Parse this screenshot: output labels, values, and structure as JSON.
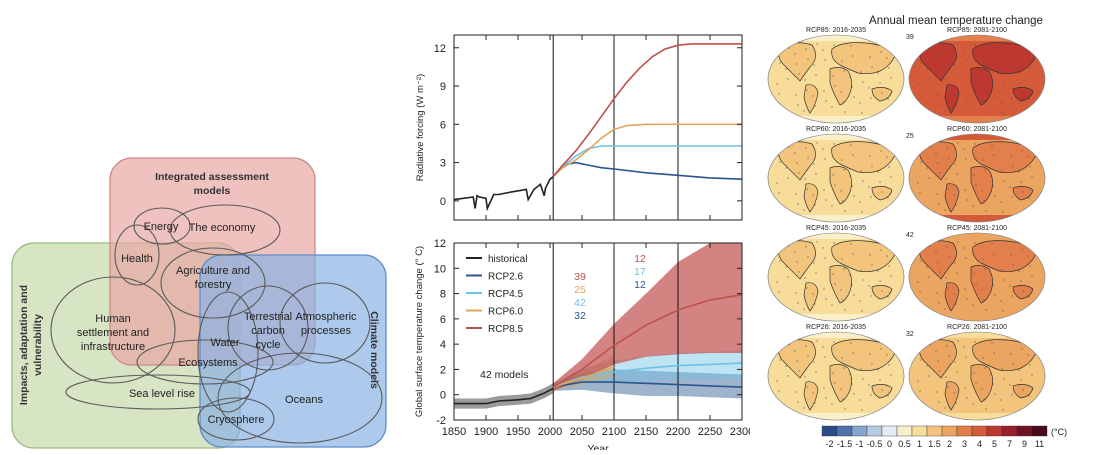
{
  "venn": {
    "groups": [
      {
        "label": "Integrated assessment models",
        "color": "#e8a6a4"
      },
      {
        "label": "Impacts, adaptation and vulnerability",
        "color": "#c9dcb2"
      },
      {
        "label": "Climate models",
        "color": "#8ab2e4"
      }
    ],
    "elements": [
      "Energy",
      "The economy",
      "Health",
      "Agriculture and forestry",
      "Human settlement and infrastructure",
      "Terrestrial carbon cycle",
      "Atmospheric processes",
      "Water",
      "Ecosystems",
      "Sea level rise",
      "Oceans",
      "Cryosphere"
    ]
  },
  "chart_data": [
    {
      "type": "line",
      "xlabel": "",
      "ylabel": "Radiative forcing (W m⁻²)",
      "xlim": [
        1850,
        2300
      ],
      "ylim": [
        -1.5,
        13
      ],
      "yticks": [
        0,
        3,
        6,
        9,
        12
      ],
      "vlines": [
        2005,
        2100,
        2200
      ],
      "series": [
        {
          "name": "historical",
          "color": "#222222",
          "x": [
            1850,
            1880,
            1883,
            1886,
            1890,
            1900,
            1902,
            1912,
            1920,
            1940,
            1963,
            1966,
            1975,
            1985,
            1991,
            1993,
            2000,
            2005
          ],
          "y": [
            0.1,
            0.3,
            -0.6,
            0.4,
            0.3,
            0.2,
            -0.6,
            0.5,
            0.5,
            0.7,
            0.9,
            0.1,
            0.9,
            1.3,
            0.4,
            1.0,
            1.7,
            1.9
          ]
        },
        {
          "name": "RCP2.6",
          "color": "#28568f",
          "x": [
            2005,
            2020,
            2040,
            2060,
            2080,
            2100,
            2150,
            2200,
            2250,
            2300
          ],
          "y": [
            1.9,
            2.8,
            3.0,
            2.8,
            2.6,
            2.5,
            2.2,
            2.0,
            1.8,
            1.7
          ]
        },
        {
          "name": "RCP4.5",
          "color": "#6ec1e4",
          "x": [
            2005,
            2020,
            2040,
            2060,
            2080,
            2100,
            2150,
            2200,
            2250,
            2300
          ],
          "y": [
            1.9,
            2.7,
            3.5,
            4.1,
            4.3,
            4.3,
            4.3,
            4.3,
            4.3,
            4.3
          ]
        },
        {
          "name": "RCP6.0",
          "color": "#e3a45d",
          "x": [
            2005,
            2020,
            2040,
            2060,
            2080,
            2100,
            2120,
            2150,
            2200,
            2250,
            2300
          ],
          "y": [
            1.9,
            2.6,
            3.2,
            4.0,
            4.9,
            5.6,
            5.9,
            6.0,
            6.0,
            6.0,
            6.0
          ]
        },
        {
          "name": "RCP8.5",
          "color": "#c0504d",
          "x": [
            2005,
            2020,
            2040,
            2060,
            2080,
            2100,
            2120,
            2140,
            2160,
            2180,
            2200,
            2220,
            2250,
            2300
          ],
          "y": [
            1.9,
            2.8,
            3.9,
            5.2,
            6.6,
            8.0,
            9.3,
            10.4,
            11.3,
            11.9,
            12.2,
            12.3,
            12.3,
            12.3
          ]
        }
      ]
    },
    {
      "type": "line",
      "xlabel": "Year",
      "ylabel": "Global surface temperature change (° C)",
      "xlim": [
        1850,
        2300
      ],
      "ylim": [
        -2,
        12
      ],
      "xticks": [
        1850,
        1900,
        1950,
        2000,
        2050,
        2100,
        2150,
        2200,
        2250,
        2300
      ],
      "yticks": [
        -2,
        0,
        2,
        4,
        6,
        8,
        10,
        12
      ],
      "vlines": [
        2005,
        2100,
        2200
      ],
      "annotation": "42 models",
      "model_counts": [
        {
          "series": "RCP2.6",
          "counts": [
            "32",
            "12"
          ],
          "color": "#28568f"
        },
        {
          "series": "RCP4.5",
          "counts": [
            "42",
            "17"
          ],
          "color": "#6ec1e4"
        },
        {
          "series": "RCP6.0",
          "counts": [
            "25"
          ],
          "color": "#e3a45d"
        },
        {
          "series": "RCP8.5",
          "counts": [
            "39",
            "12"
          ],
          "color": "#c0504d"
        }
      ],
      "series": [
        {
          "name": "historical",
          "color": "#222222",
          "x": [
            1850,
            1880,
            1900,
            1920,
            1950,
            1970,
            1990,
            2005
          ],
          "y": [
            -0.7,
            -0.7,
            -0.7,
            -0.5,
            -0.4,
            -0.3,
            0.1,
            0.5
          ],
          "lo": [
            -1.1,
            -1.1,
            -1.1,
            -0.9,
            -0.8,
            -0.7,
            -0.3,
            0.1
          ],
          "hi": [
            -0.3,
            -0.3,
            -0.3,
            -0.1,
            0.0,
            0.1,
            0.5,
            0.9
          ]
        },
        {
          "name": "RCP2.6",
          "color": "#28568f",
          "x": [
            2005,
            2050,
            2100,
            2150,
            2200,
            2250,
            2300
          ],
          "y": [
            0.6,
            1.0,
            1.0,
            0.9,
            0.8,
            0.7,
            0.6
          ],
          "lo": [
            0.3,
            0.4,
            0.1,
            -0.1,
            -0.1,
            -0.2,
            -0.3
          ],
          "hi": [
            0.9,
            1.7,
            2.0,
            1.9,
            1.8,
            1.7,
            1.6
          ]
        },
        {
          "name": "RCP4.5",
          "color": "#6ec1e4",
          "x": [
            2005,
            2050,
            2100,
            2150,
            2200,
            2250,
            2300
          ],
          "y": [
            0.6,
            1.4,
            1.8,
            2.1,
            2.3,
            2.4,
            2.5
          ],
          "lo": [
            0.3,
            0.8,
            1.0,
            1.1,
            1.2,
            1.2,
            1.3
          ],
          "hi": [
            0.9,
            2.1,
            2.7,
            3.1,
            3.3,
            3.4,
            3.5
          ]
        },
        {
          "name": "RCP6.0",
          "color": "#e3a45d",
          "x": [
            2005,
            2050,
            2100
          ],
          "y": [
            0.6,
            1.3,
            2.2
          ],
          "lo": [
            0.3,
            0.8,
            1.4
          ],
          "hi": [
            0.9,
            1.9,
            3.1
          ]
        },
        {
          "name": "RCP8.5",
          "color": "#c0504d",
          "x": [
            2005,
            2050,
            2100,
            2150,
            2200,
            2250,
            2300
          ],
          "y": [
            0.6,
            2.0,
            3.9,
            5.5,
            6.7,
            7.5,
            7.9
          ],
          "lo": [
            0.3,
            1.2,
            2.4,
            3.0,
            3.2,
            3.3,
            3.3
          ],
          "hi": [
            0.9,
            2.8,
            5.6,
            8.0,
            10.5,
            12,
            12
          ]
        }
      ]
    },
    {
      "type": "heatmap",
      "title": "Annual mean temperature change",
      "maps": [
        {
          "label": "RCP85: 2016-2035",
          "count": "39",
          "warming": 1
        },
        {
          "label": "RCP85: 2081-2100",
          "count": "",
          "warming": 4
        },
        {
          "label": "RCP60: 2016-2035",
          "count": "25",
          "warming": 1
        },
        {
          "label": "RCP60: 2081-2100",
          "count": "",
          "warming": 2.5
        },
        {
          "label": "RCP45: 2016-2035",
          "count": "42",
          "warming": 1
        },
        {
          "label": "RCP45: 2081-2100",
          "count": "",
          "warming": 2
        },
        {
          "label": "RCP26: 2016-2035",
          "count": "32",
          "warming": 1
        },
        {
          "label": "RCP26: 2081-2100",
          "count": "",
          "warming": 1.2
        }
      ],
      "colorbar": {
        "labels": [
          "-2",
          "-1.5",
          "-1",
          "-0.5",
          "0",
          "0.5",
          "1",
          "1.5",
          "2",
          "3",
          "4",
          "5",
          "7",
          "9",
          "11"
        ],
        "colors": [
          "#2a4b86",
          "#4f72ad",
          "#86a6cf",
          "#b7cbe3",
          "#e6edf5",
          "#fbefc9",
          "#f7dc9a",
          "#f3c47c",
          "#eca461",
          "#e27f4b",
          "#d45a3a",
          "#bd3930",
          "#9a1f2a",
          "#6e1224",
          "#4a0a1c"
        ],
        "unit": "(°C)"
      }
    }
  ]
}
